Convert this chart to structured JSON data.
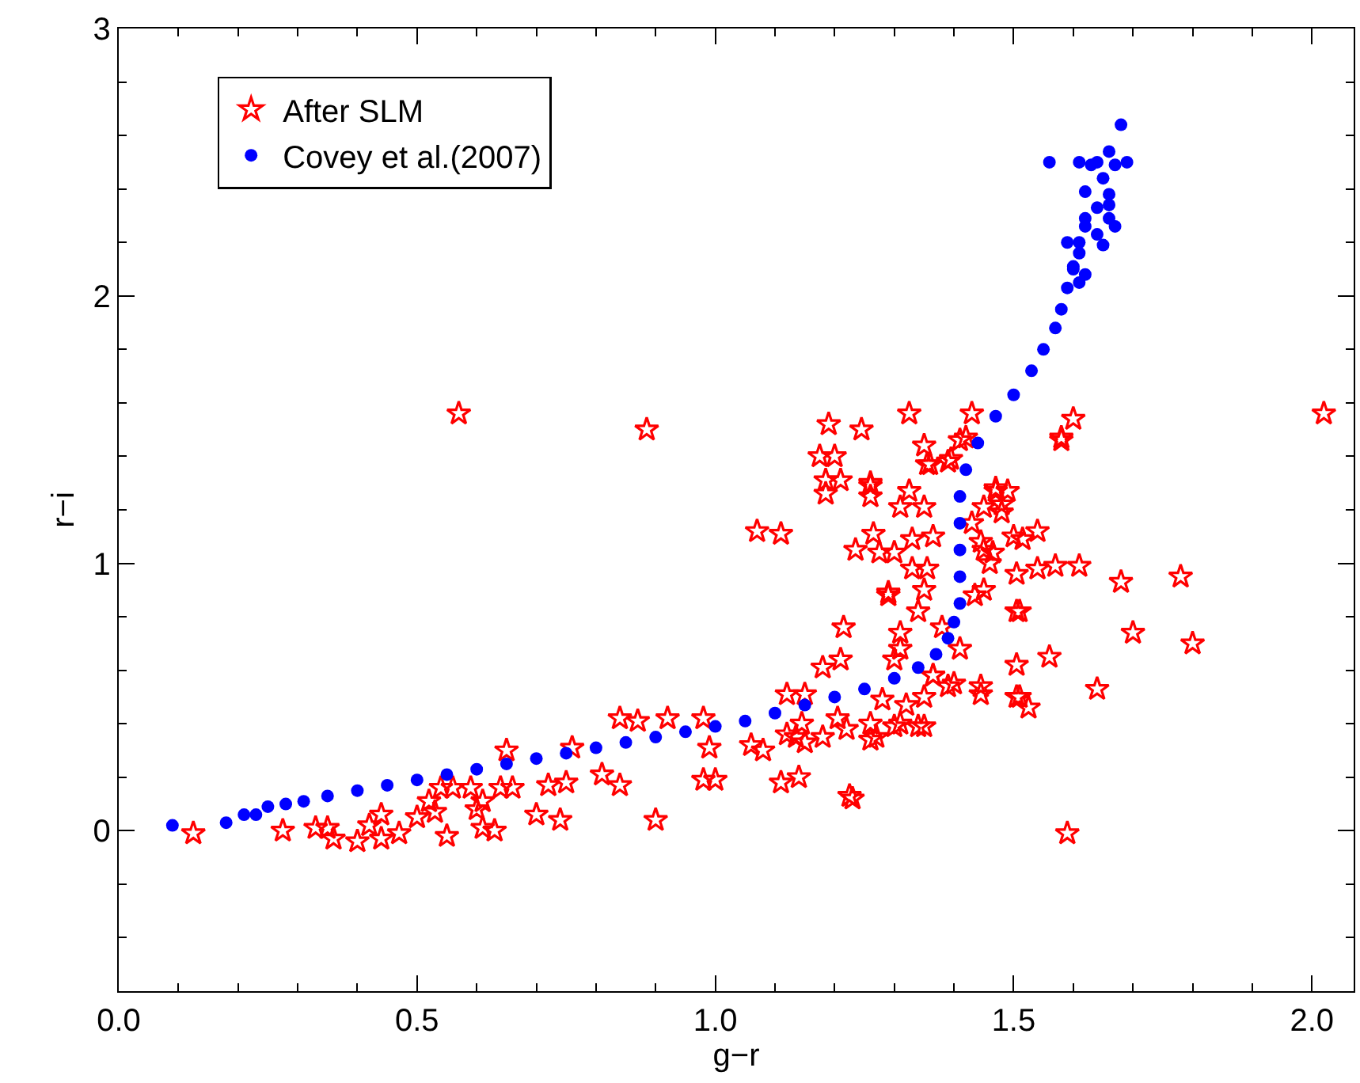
{
  "chart_data": {
    "type": "scatter",
    "xlabel": "g−r",
    "ylabel": "r−i",
    "xlim": [
      0,
      2.07
    ],
    "ylim": [
      -0.6,
      3
    ],
    "xticks": [
      {
        "value": 0,
        "label": "0.0"
      },
      0.5,
      {
        "value": 1,
        "label": "1.0"
      },
      1.5,
      {
        "value": 2,
        "label": "2.0"
      }
    ],
    "yticks": [
      0,
      1,
      2,
      3
    ],
    "legend": "top left",
    "series": [
      {
        "name": "After SLM",
        "color": "#ff0000",
        "marker": "star",
        "x": [
          0.57,
          0.125,
          0.275,
          0.33,
          0.35,
          0.36,
          0.4,
          0.42,
          0.44,
          0.44,
          0.47,
          0.5,
          0.52,
          0.53,
          0.54,
          0.55,
          0.56,
          0.59,
          0.6,
          0.61,
          0.61,
          0.63,
          0.64,
          0.65,
          0.66,
          0.7,
          0.72,
          0.74,
          0.75,
          0.76,
          0.81,
          0.885,
          0.9,
          0.84,
          0.87,
          0.92,
          0.98,
          0.84,
          0.98,
          1.0,
          0.99,
          1.06,
          1.08,
          1.11,
          1.14,
          1.225,
          1.07,
          1.11,
          1.19,
          1.245,
          1.325,
          1.175,
          1.2,
          1.185,
          1.21,
          1.185,
          1.26,
          1.26,
          1.235,
          1.12,
          1.15,
          1.18,
          1.21,
          1.215,
          1.29,
          1.275,
          1.3,
          1.265,
          1.31,
          1.35,
          1.325,
          1.355,
          1.39,
          1.43,
          1.42,
          1.33,
          1.365,
          1.33,
          1.355,
          1.35,
          1.34,
          1.38,
          1.31,
          1.31,
          1.3,
          1.41,
          1.365,
          1.4,
          1.35,
          1.32,
          1.28,
          1.26,
          1.3,
          1.35,
          1.26,
          1.22,
          1.205,
          1.18,
          1.15,
          1.135,
          1.12,
          1.145,
          1.445,
          1.505,
          1.505,
          1.505,
          1.505,
          1.5,
          1.47,
          1.45,
          1.48,
          1.46,
          1.45,
          1.435,
          1.45,
          1.43,
          2.02,
          1.6,
          1.58,
          1.58,
          1.35,
          1.36,
          1.395,
          1.41,
          1.26,
          1.47,
          1.49,
          1.48,
          1.515,
          1.54,
          1.445,
          1.465,
          1.54,
          1.57,
          1.61,
          1.68,
          1.78,
          1.51,
          1.7,
          1.8,
          1.29,
          1.56,
          1.64,
          1.445,
          1.51,
          1.525,
          1.34,
          1.31,
          1.27,
          1.23,
          1.59,
          1.39,
          1.365
        ],
        "values": [
          1.56,
          -0.01,
          0.0,
          0.01,
          0.01,
          -0.03,
          -0.04,
          0.02,
          0.06,
          -0.03,
          -0.01,
          0.05,
          0.11,
          0.07,
          0.16,
          -0.02,
          0.16,
          0.16,
          0.08,
          0.11,
          0.01,
          0.0,
          0.16,
          0.3,
          0.16,
          0.06,
          0.17,
          0.04,
          0.18,
          0.31,
          0.21,
          1.5,
          0.04,
          0.42,
          0.41,
          0.42,
          0.42,
          0.17,
          0.19,
          0.19,
          0.31,
          0.32,
          0.3,
          0.18,
          0.2,
          0.13,
          1.12,
          1.11,
          1.52,
          1.5,
          1.56,
          1.4,
          1.4,
          1.31,
          1.31,
          1.26,
          1.3,
          1.25,
          1.05,
          0.51,
          0.51,
          0.61,
          0.64,
          0.76,
          0.88,
          1.04,
          1.04,
          1.11,
          1.21,
          1.21,
          1.27,
          1.37,
          1.38,
          1.56,
          1.47,
          1.09,
          1.1,
          0.98,
          0.98,
          0.9,
          0.82,
          0.76,
          0.74,
          0.68,
          0.64,
          0.68,
          0.58,
          0.55,
          0.5,
          0.47,
          0.49,
          0.4,
          0.39,
          0.39,
          0.34,
          0.38,
          0.42,
          0.35,
          0.33,
          0.35,
          0.36,
          0.4,
          0.54,
          0.62,
          0.5,
          0.82,
          0.96,
          1.1,
          1.27,
          1.21,
          1.22,
          1.0,
          0.9,
          0.88,
          1.05,
          1.15,
          1.56,
          1.54,
          1.47,
          1.46,
          1.44,
          1.37,
          1.39,
          1.46,
          1.29,
          1.28,
          1.27,
          1.19,
          1.09,
          1.12,
          1.08,
          1.04,
          0.98,
          0.99,
          0.99,
          0.93,
          0.95,
          0.82,
          0.74,
          0.7,
          0.89,
          0.65,
          0.53,
          0.51,
          0.5,
          0.46,
          0.39,
          0.4,
          0.35,
          0.12,
          -0.01,
          0.54,
          0.58
        ]
      },
      {
        "name": "Covey et al.(2007)",
        "color": "#0000ff",
        "marker": "circle",
        "x": [
          0.09,
          0.18,
          0.21,
          0.23,
          0.25,
          0.28,
          0.31,
          0.35,
          0.4,
          0.45,
          0.5,
          0.55,
          0.6,
          0.65,
          0.7,
          0.75,
          0.8,
          0.85,
          0.9,
          0.95,
          1.0,
          1.05,
          1.1,
          1.15,
          1.2,
          1.25,
          1.3,
          1.34,
          1.37,
          1.39,
          1.4,
          1.41,
          1.41,
          1.41,
          1.41,
          1.41,
          1.42,
          1.44,
          1.47,
          1.5,
          1.53,
          1.55,
          1.57,
          1.58,
          1.59,
          1.6,
          1.61,
          1.62,
          1.61,
          1.6,
          1.65,
          1.61,
          1.59,
          1.64,
          1.62,
          1.67,
          1.66,
          1.62,
          1.64,
          1.66,
          1.66,
          1.62,
          1.65,
          1.69,
          1.67,
          1.66,
          1.64,
          1.63,
          1.61,
          1.56,
          1.68
        ],
        "values": [
          0.02,
          0.03,
          0.06,
          0.06,
          0.09,
          0.1,
          0.11,
          0.13,
          0.15,
          0.17,
          0.19,
          0.21,
          0.23,
          0.25,
          0.27,
          0.29,
          0.31,
          0.33,
          0.35,
          0.37,
          0.39,
          0.41,
          0.44,
          0.47,
          0.5,
          0.53,
          0.57,
          0.61,
          0.66,
          0.72,
          0.78,
          0.85,
          0.95,
          1.05,
          1.15,
          1.25,
          1.35,
          1.45,
          1.55,
          1.63,
          1.72,
          1.8,
          1.88,
          1.95,
          2.03,
          2.1,
          2.05,
          2.08,
          2.16,
          2.11,
          2.19,
          2.2,
          2.2,
          2.23,
          2.26,
          2.26,
          2.29,
          2.29,
          2.33,
          2.34,
          2.38,
          2.39,
          2.44,
          2.5,
          2.49,
          2.54,
          2.5,
          2.49,
          2.5,
          2.5,
          2.64
        ]
      }
    ]
  }
}
